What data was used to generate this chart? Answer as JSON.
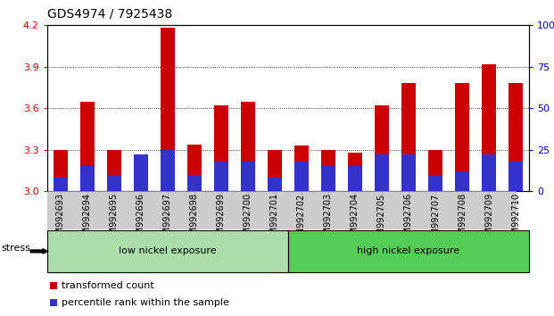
{
  "title": "GDS4974 / 7925438",
  "samples": [
    "GSM992693",
    "GSM992694",
    "GSM992695",
    "GSM992696",
    "GSM992697",
    "GSM992698",
    "GSM992699",
    "GSM992700",
    "GSM992701",
    "GSM992702",
    "GSM992703",
    "GSM992704",
    "GSM992705",
    "GSM992706",
    "GSM992707",
    "GSM992708",
    "GSM992709",
    "GSM992710"
  ],
  "transformed_count": [
    3.3,
    3.65,
    3.3,
    3.22,
    4.18,
    3.34,
    3.62,
    3.65,
    3.3,
    3.33,
    3.3,
    3.28,
    3.62,
    3.78,
    3.3,
    3.78,
    3.92,
    3.78
  ],
  "percentile_rank_pct": [
    8,
    15,
    10,
    22,
    25,
    10,
    18,
    18,
    8,
    18,
    15,
    15,
    22,
    22,
    10,
    12,
    22,
    18
  ],
  "bar_color": "#cc0000",
  "blue_color": "#3333cc",
  "ymin": 3.0,
  "ymax": 4.2,
  "yticks": [
    3.0,
    3.3,
    3.6,
    3.9,
    4.2
  ],
  "right_yticks": [
    0,
    25,
    50,
    75,
    100
  ],
  "low_nickel_count": 9,
  "group_labels": [
    "low nickel exposure",
    "high nickel exposure"
  ],
  "group_color_low": "#aaddaa",
  "group_color_high": "#55cc55",
  "stress_label": "stress",
  "legend_labels": [
    "transformed count",
    "percentile rank within the sample"
  ],
  "legend_colors": [
    "#cc0000",
    "#3333cc"
  ],
  "xlabel_color": "#cc0000",
  "right_axis_color": "#0000cc",
  "bar_width": 0.55,
  "title_fontsize": 10,
  "tick_fontsize": 7,
  "label_fontsize": 8
}
